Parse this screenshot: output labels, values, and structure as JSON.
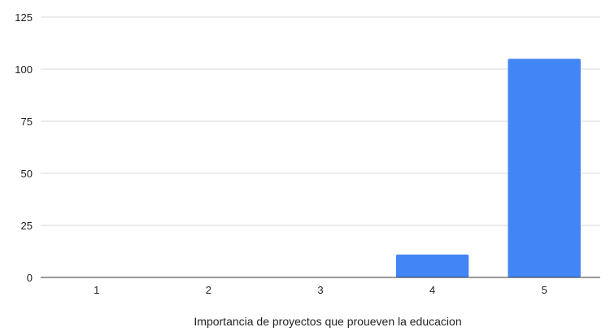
{
  "chart_data": {
    "type": "bar",
    "categories": [
      "1",
      "2",
      "3",
      "4",
      "5"
    ],
    "values": [
      0,
      0,
      0,
      11,
      105
    ],
    "xlabel": "Importancia de proyectos que proueven la educacion",
    "ylabel": "",
    "ylim": [
      0,
      125
    ],
    "yticks": [
      "0",
      "25",
      "50",
      "75",
      "100",
      "125"
    ],
    "grid": true,
    "legend": "none",
    "colors": {
      "bar": "#4285f4",
      "grid": "#d9d9d9",
      "axis": "#333333"
    }
  }
}
